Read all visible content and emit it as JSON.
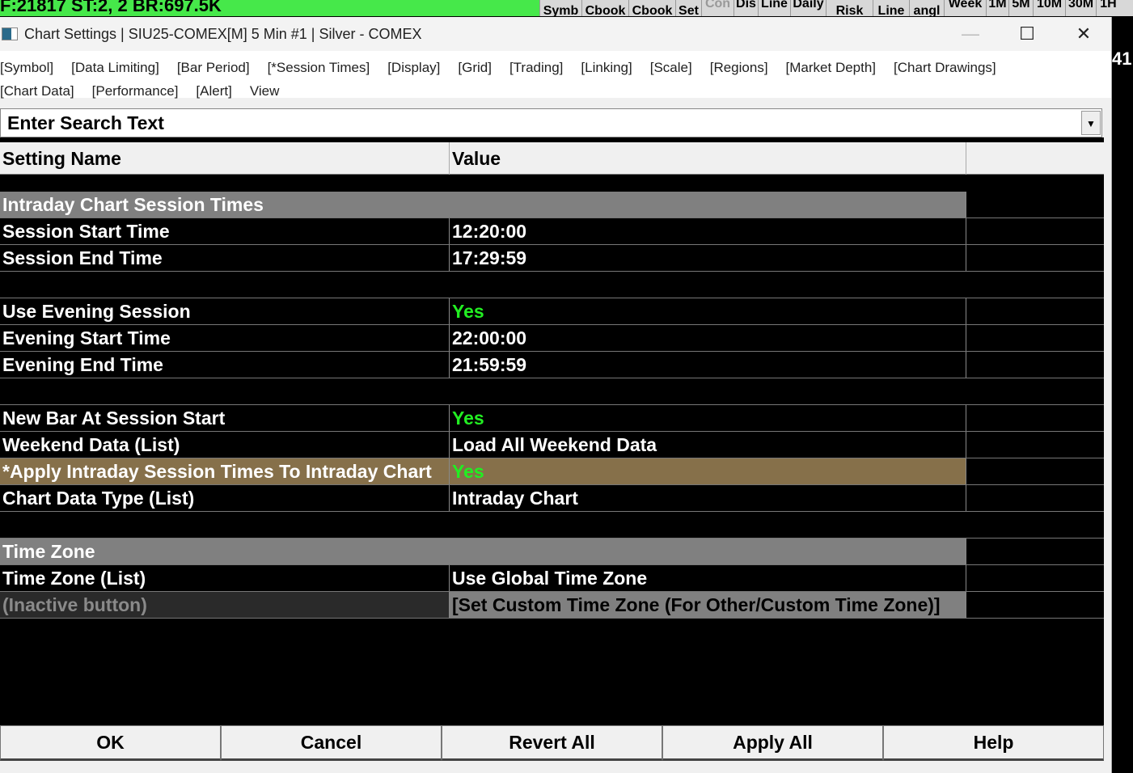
{
  "status_bar": {
    "text": "F:21817  ST:2, 2  BR:697.5K",
    "color": "#46e84a"
  },
  "toolbar": [
    {
      "label": "Symb",
      "x": "667",
      "w": 52
    },
    {
      "label": "Cbook",
      "w": 58
    },
    {
      "label": "Cbook",
      "w": 58
    },
    {
      "label": "Set",
      "w": 32
    },
    {
      "label": "Con",
      "w": 40,
      "dim": true
    },
    {
      "label": "Dis",
      "w": 30,
      "up": true
    },
    {
      "label": "Line",
      "w": 40,
      "up": true
    },
    {
      "label": "Daily",
      "w": 44,
      "up": true
    },
    {
      "label": "Risk",
      "w": 58
    },
    {
      "label": "Line",
      "w": 45
    },
    {
      "label": "angl",
      "w": 43
    },
    {
      "label": "Week",
      "w": 52,
      "up": true
    },
    {
      "label": "1M",
      "w": 28,
      "up": true
    },
    {
      "label": "5M",
      "w": 30,
      "up": true
    },
    {
      "label": "10M",
      "w": 40,
      "up": true
    },
    {
      "label": "30M",
      "w": 38,
      "up": true
    },
    {
      "label": "1H",
      "w": 30,
      "up": true
    }
  ],
  "right_strip_text": "41",
  "window": {
    "title": "Chart Settings | SIU25-COMEX[M]  5 Min  #1 | Silver - COMEX"
  },
  "menu": {
    "line1": [
      "[Symbol]",
      "[Data Limiting]",
      "[Bar Period]",
      "[*Session Times]",
      "[Display]",
      "[Grid]",
      "[Trading]",
      "[Linking]",
      "[Scale]",
      "[Regions]",
      "[Market Depth]",
      "[Chart Drawings]"
    ],
    "line2": [
      "[Chart Data]",
      "[Performance]",
      "[Alert]",
      "View"
    ]
  },
  "search": {
    "placeholder": "Enter Search Text"
  },
  "table": {
    "headers": [
      "Setting Name",
      "Value"
    ],
    "rows": [
      {
        "type": "group",
        "name": "Intraday Chart Session Times"
      },
      {
        "name": "Session Start Time",
        "value": "12:20:00"
      },
      {
        "name": "Session End Time",
        "value": "17:29:59"
      },
      {
        "type": "blank"
      },
      {
        "name": "Use Evening Session",
        "value": "Yes",
        "green": true
      },
      {
        "name": "Evening Start Time",
        "value": "22:00:00"
      },
      {
        "name": "Evening End Time",
        "value": "21:59:59"
      },
      {
        "type": "blank"
      },
      {
        "name": "New Bar At Session Start",
        "value": "Yes",
        "green": true
      },
      {
        "name": "Weekend Data (List)",
        "value": "Load All Weekend Data"
      },
      {
        "name": "*Apply Intraday Session Times To Intraday Chart",
        "value": "Yes",
        "green": true,
        "highlight": true
      },
      {
        "name": "Chart Data Type (List)",
        "value": "Intraday Chart"
      },
      {
        "type": "blank"
      },
      {
        "type": "group",
        "name": "Time Zone"
      },
      {
        "name": "Time Zone (List)",
        "value": "Use Global Time Zone"
      },
      {
        "type": "inactive",
        "name": " (Inactive button)",
        "value": "[Set Custom Time Zone (For Other/Custom Time Zone)]"
      }
    ]
  },
  "buttons": [
    "OK",
    "Cancel",
    "Revert All",
    "Apply All",
    "Help"
  ]
}
